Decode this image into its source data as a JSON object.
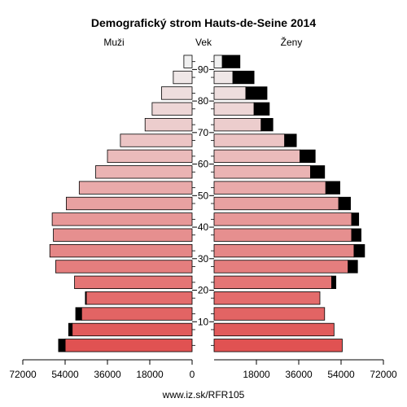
{
  "chart_data": {
    "type": "bar",
    "title": "Demografický strom Hauts-de-Seine 2014",
    "left_label": "Muži",
    "center_label": "Vek",
    "right_label": "Ženy",
    "source": "www.iz.sk/RFR105",
    "age_groups": [
      "0-4",
      "5-9",
      "10-14",
      "15-19",
      "20-24",
      "25-29",
      "30-34",
      "35-39",
      "40-44",
      "45-49",
      "50-54",
      "55-59",
      "60-64",
      "65-69",
      "70-74",
      "75-79",
      "80-84",
      "85-89",
      "90+"
    ],
    "age_ticks": [
      10,
      20,
      30,
      40,
      50,
      60,
      70,
      80,
      90
    ],
    "x_ticks": [
      72000,
      54000,
      36000,
      18000,
      0,
      18000,
      36000,
      54000,
      72000
    ],
    "xlim": [
      0,
      72000
    ],
    "series": [
      {
        "name": "Muži",
        "values": [
          54000,
          51000,
          47000,
          45000,
          50000,
          58000,
          60500,
          59000,
          59500,
          53500,
          48000,
          41000,
          36000,
          30500,
          20000,
          17000,
          13000,
          8000,
          3500
        ]
      },
      {
        "name": "Muži",
        "values": [
          2800,
          1500,
          2500,
          400,
          0,
          0,
          0,
          0,
          0,
          0,
          0,
          0,
          0,
          0,
          0,
          0,
          0,
          0,
          0
        ]
      },
      {
        "name": "Ženy",
        "values": [
          54500,
          51000,
          47000,
          45000,
          50000,
          57000,
          59500,
          58500,
          58500,
          53000,
          47500,
          41000,
          36500,
          30000,
          20000,
          17000,
          13500,
          8000,
          3500
        ]
      },
      {
        "name": "Ženy",
        "values": [
          0,
          0,
          0,
          0,
          1800,
          4000,
          4500,
          4000,
          3000,
          5000,
          6000,
          6000,
          6500,
          5000,
          5000,
          6500,
          9000,
          9000,
          7500
        ]
      }
    ]
  },
  "colors": {
    "young_bar": "#e05252",
    "old_bar": "#f0f0f0",
    "excess": "#000000"
  }
}
